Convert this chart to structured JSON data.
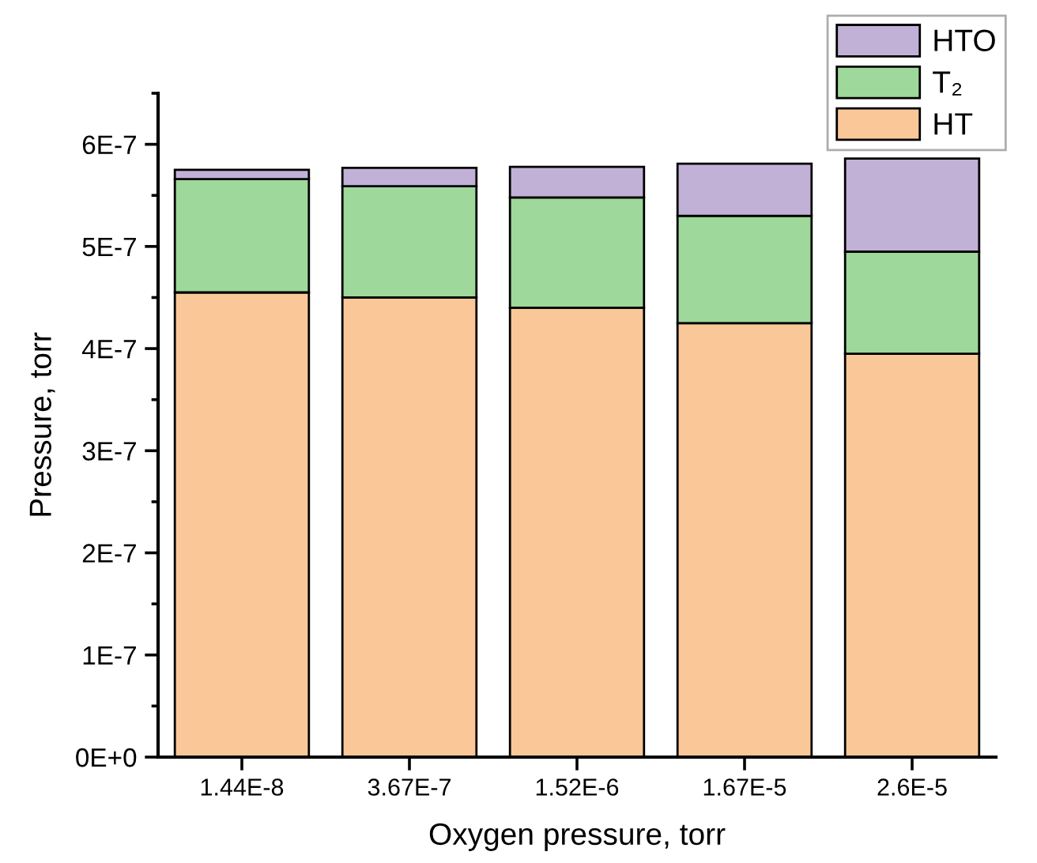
{
  "chart_data": {
    "type": "bar",
    "stacked": true,
    "xlabel": "Oxygen pressure, torr",
    "ylabel": "Pressure, torr",
    "categories": [
      "1.44E-8",
      "3.67E-7",
      "1.52E-6",
      "1.67E-5",
      "2.6E-5"
    ],
    "series": [
      {
        "name": "HT",
        "color": "#fac898",
        "values": [
          4.55e-07,
          4.5e-07,
          4.4e-07,
          4.25e-07,
          3.95e-07
        ]
      },
      {
        "name": "T₂",
        "color": "#9ed89b",
        "values": [
          1.11e-07,
          1.09e-07,
          1.08e-07,
          1.05e-07,
          1e-07
        ]
      },
      {
        "name": "HTO",
        "color": "#c2b1d7",
        "values": [
          9e-09,
          1.8e-08,
          3e-08,
          5.1e-08,
          9.1e-08
        ]
      }
    ],
    "ylim": [
      0,
      6.5e-07
    ],
    "yticks": [
      {
        "value": 0,
        "label": "0E+0"
      },
      {
        "value": 1e-07,
        "label": "1E-7"
      },
      {
        "value": 2e-07,
        "label": "2E-7"
      },
      {
        "value": 3e-07,
        "label": "3E-7"
      },
      {
        "value": 4e-07,
        "label": "4E-7"
      },
      {
        "value": 5e-07,
        "label": "5E-7"
      },
      {
        "value": 6e-07,
        "label": "6E-7"
      }
    ],
    "legend": "top right",
    "grid": false
  }
}
